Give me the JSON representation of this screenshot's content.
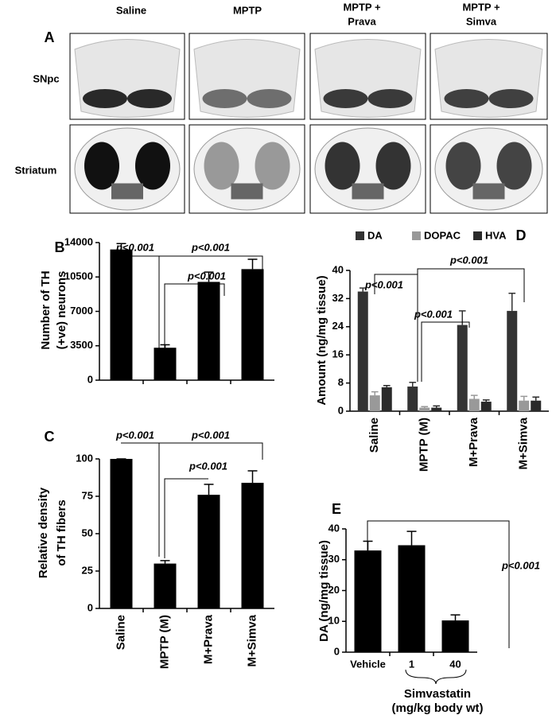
{
  "panel_a": {
    "label": "A",
    "columns": [
      "Saline",
      "MPTP",
      [
        "MPTP +",
        "Prava"
      ],
      [
        "MPTP +",
        "Simva"
      ]
    ],
    "rows": [
      "SNpc",
      "Striatum"
    ]
  },
  "chart_data": [
    {
      "type": "bar",
      "panel_label": "B",
      "ylabel": [
        "Number of TH",
        "(+ve) neurons"
      ],
      "categories": [
        null,
        null,
        null,
        null
      ],
      "values": [
        13300,
        3300,
        10000,
        11300
      ],
      "errors": [
        600,
        300,
        1000,
        1000
      ],
      "color": "#000000",
      "ylim": [
        0,
        14000
      ],
      "yticks": [
        0,
        3500,
        7000,
        10500,
        14000
      ],
      "annotations": [
        "p<0.001",
        "p<0.001",
        "p<0.001"
      ]
    },
    {
      "type": "bar",
      "panel_label": "C",
      "ylabel": [
        "Relative density",
        "of TH fibers"
      ],
      "categories": [
        "Saline",
        "MPTP (M)",
        "M+Prava",
        "M+Simva"
      ],
      "values": [
        100,
        30,
        76,
        84
      ],
      "errors": [
        0,
        2,
        7,
        8
      ],
      "color": "#000000",
      "ylim": [
        0,
        100
      ],
      "yticks": [
        0,
        25,
        50,
        75,
        100
      ],
      "annotations": [
        "p<0.001",
        "p<0.001",
        "p<0.001"
      ]
    },
    {
      "type": "grouped-bar",
      "panel_label": "D",
      "ylabel": "Amount (ng/mg tissue)",
      "categories": [
        "Saline",
        "MPTP (M)",
        "M+Prava",
        "M+Simva"
      ],
      "series": [
        {
          "name": "DA",
          "color": "#333333",
          "values": [
            34,
            7,
            24.5,
            28.5
          ],
          "errors": [
            1,
            1.2,
            4,
            5
          ]
        },
        {
          "name": "DOPAC",
          "color": "#999999",
          "values": [
            4.5,
            1,
            3.5,
            3
          ],
          "errors": [
            1,
            0.3,
            1,
            1.2
          ]
        },
        {
          "name": "HVA",
          "color": "#2a2a2a",
          "values": [
            6.8,
            1,
            2.7,
            3
          ],
          "errors": [
            0.5,
            0.5,
            0.5,
            1
          ]
        }
      ],
      "ylim": [
        0,
        40
      ],
      "yticks": [
        0,
        8,
        16,
        24,
        32,
        40
      ],
      "legend": "top",
      "annotations": [
        "p<0.001",
        "p<0.001",
        "p<0.001"
      ]
    },
    {
      "type": "bar",
      "panel_label": "E",
      "ylabel": "DA (ng/mg tissue)",
      "xlabel": [
        "Simvastatin",
        "(mg/kg body wt)"
      ],
      "categories": [
        "Vehicle",
        "1",
        "40"
      ],
      "values": [
        33,
        34.7,
        10.3
      ],
      "errors": [
        3,
        4.5,
        1.8
      ],
      "color": "#000000",
      "ylim": [
        0,
        40
      ],
      "yticks": [
        0,
        10,
        20,
        30,
        40
      ],
      "annotations": [
        "p<0.001"
      ]
    }
  ]
}
